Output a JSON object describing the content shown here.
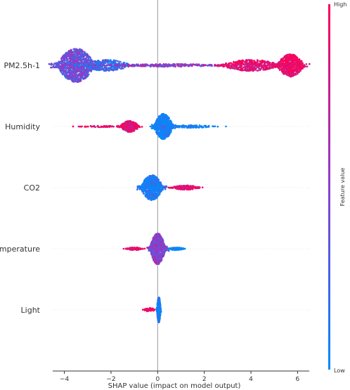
{
  "chart_data": {
    "type": "scatter",
    "subtype": "shap-beeswarm",
    "xlabel": "SHAP value (impact on model output)",
    "xlim": [
      -4.5,
      6.5
    ],
    "xticks": [
      -4,
      -2,
      0,
      2,
      4,
      6
    ],
    "features": [
      {
        "name": "PM2.5h-1",
        "clusters": [
          {
            "x": -3.5,
            "spread": 0.7,
            "n": 1100,
            "width": 24,
            "hi": 0.4
          },
          {
            "x": -2.2,
            "spread": 0.9,
            "n": 350,
            "width": 8,
            "hi": 0.2
          },
          {
            "x": 0.5,
            "spread": 2.2,
            "n": 300,
            "width": 2,
            "hi": 0.5
          },
          {
            "x": 4.0,
            "spread": 1.1,
            "n": 450,
            "width": 8,
            "hi": 0.9
          },
          {
            "x": 5.7,
            "spread": 0.5,
            "n": 600,
            "width": 16,
            "hi": 0.95
          }
        ]
      },
      {
        "name": "Humidity",
        "clusters": [
          {
            "x": 0.25,
            "spread": 0.35,
            "n": 700,
            "width": 18,
            "hi": 0.05
          },
          {
            "x": -1.2,
            "spread": 0.35,
            "n": 350,
            "width": 8,
            "hi": 0.9
          },
          {
            "x": -2.4,
            "spread": 0.9,
            "n": 70,
            "width": 1,
            "hi": 0.95
          },
          {
            "x": 1.5,
            "spread": 0.8,
            "n": 120,
            "width": 2,
            "hi": 0.0
          }
        ]
      },
      {
        "name": "CO2",
        "clusters": [
          {
            "x": -0.25,
            "spread": 0.4,
            "n": 800,
            "width": 18,
            "hi": 0.05
          },
          {
            "x": 1.2,
            "spread": 0.55,
            "n": 200,
            "width": 3,
            "hi": 0.95
          }
        ]
      },
      {
        "name": "Temperature",
        "clusters": [
          {
            "x": 0.0,
            "spread": 0.28,
            "n": 1000,
            "width": 22,
            "hi": 0.5
          },
          {
            "x": -1.0,
            "spread": 0.3,
            "n": 80,
            "width": 2,
            "hi": 0.95
          },
          {
            "x": 0.8,
            "spread": 0.3,
            "n": 80,
            "width": 2,
            "hi": 0.0
          }
        ]
      },
      {
        "name": "Light",
        "clusters": [
          {
            "x": 0.05,
            "spread": 0.06,
            "n": 700,
            "width": 18,
            "hi": 0.05
          },
          {
            "x": -0.35,
            "spread": 0.2,
            "n": 60,
            "width": 3,
            "hi": 0.95
          }
        ]
      }
    ],
    "colorbar": {
      "label": "Feature value",
      "high": "High",
      "low": "Low",
      "low_color": "#008bfb",
      "high_color": "#ff0052"
    },
    "zero_line_color": "#999999",
    "grid": false
  }
}
